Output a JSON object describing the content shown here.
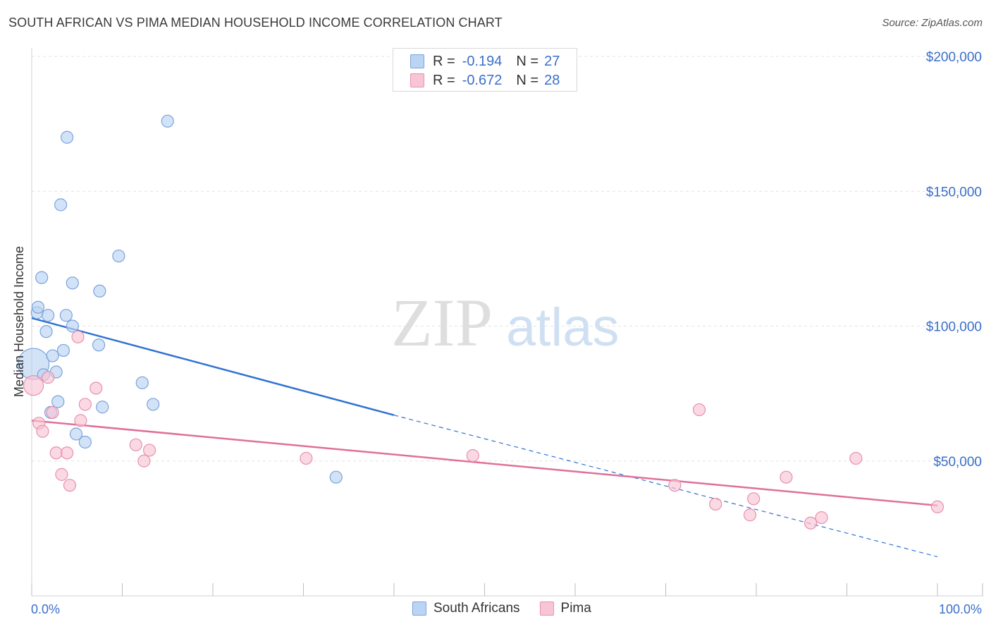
{
  "header": {
    "title": "SOUTH AFRICAN VS PIMA MEDIAN HOUSEHOLD INCOME CORRELATION CHART",
    "source": "Source: ZipAtlas.com"
  },
  "legend": {
    "rows": [
      {
        "r_label": "R =",
        "r_value": "-0.194",
        "n_label": "N =",
        "n_value": "27"
      },
      {
        "r_label": "R =",
        "r_value": "-0.672",
        "n_label": "N =",
        "n_value": "28"
      }
    ]
  },
  "colors": {
    "blue_fill": "#bcd4f3",
    "blue_stroke": "#7aa3dd",
    "blue_line": "#2f73d4",
    "pink_fill": "#f8c5d4",
    "pink_stroke": "#e890ae",
    "pink_line": "#e0709a",
    "axis_text": "#3a6fc9",
    "grid": "#e3e3e3"
  },
  "watermark": {
    "part1": "ZIP",
    "part2": "atlas"
  },
  "chart_data": {
    "type": "scatter",
    "title": "SOUTH AFRICAN VS PIMA MEDIAN HOUSEHOLD INCOME CORRELATION CHART",
    "xlabel": "",
    "ylabel": "Median Household Income",
    "xlim": [
      0,
      100
    ],
    "ylim": [
      0,
      210000
    ],
    "x_tick_labels": [
      "0.0%",
      "100.0%"
    ],
    "y_ticks": [
      50000,
      100000,
      150000,
      200000
    ],
    "y_tick_labels": [
      "$50,000",
      "$100,000",
      "$150,000",
      "$200,000"
    ],
    "grid": true,
    "legend_position": "top-center",
    "series": [
      {
        "name": "South Africans",
        "color": "blue",
        "points": [
          [
            0.2,
            86000
          ],
          [
            0.6,
            105000
          ],
          [
            0.7,
            107000
          ],
          [
            1.1,
            118000
          ],
          [
            1.3,
            82000
          ],
          [
            1.6,
            98000
          ],
          [
            1.8,
            104000
          ],
          [
            2.1,
            68000
          ],
          [
            2.3,
            89000
          ],
          [
            2.7,
            83000
          ],
          [
            2.9,
            72000
          ],
          [
            3.2,
            145000
          ],
          [
            3.5,
            91000
          ],
          [
            3.8,
            104000
          ],
          [
            3.9,
            170000
          ],
          [
            4.5,
            116000
          ],
          [
            4.5,
            100000
          ],
          [
            4.9,
            60000
          ],
          [
            5.9,
            57000
          ],
          [
            7.5,
            113000
          ],
          [
            7.4,
            93000
          ],
          [
            7.8,
            70000
          ],
          [
            9.6,
            126000
          ],
          [
            12.2,
            79000
          ],
          [
            13.4,
            71000
          ],
          [
            15.0,
            176000
          ],
          [
            33.6,
            44000
          ]
        ],
        "trend": {
          "x": [
            0,
            40
          ],
          "y": [
            103000,
            67000
          ],
          "dashed_to": [
            100,
            14500
          ]
        }
      },
      {
        "name": "Pima",
        "color": "pink",
        "points": [
          [
            0.2,
            78000
          ],
          [
            0.8,
            64000
          ],
          [
            1.2,
            61000
          ],
          [
            1.8,
            81000
          ],
          [
            2.3,
            68000
          ],
          [
            2.7,
            53000
          ],
          [
            3.3,
            45000
          ],
          [
            3.9,
            53000
          ],
          [
            4.2,
            41000
          ],
          [
            5.1,
            96000
          ],
          [
            5.4,
            65000
          ],
          [
            5.9,
            71000
          ],
          [
            7.1,
            77000
          ],
          [
            11.5,
            56000
          ],
          [
            12.4,
            50000
          ],
          [
            13.0,
            54000
          ],
          [
            30.3,
            51000
          ],
          [
            48.7,
            52000
          ],
          [
            71.0,
            41000
          ],
          [
            73.7,
            69000
          ],
          [
            75.5,
            34000
          ],
          [
            79.3,
            30000
          ],
          [
            79.7,
            36000
          ],
          [
            83.3,
            44000
          ],
          [
            86.0,
            27000
          ],
          [
            87.2,
            29000
          ],
          [
            91.0,
            51000
          ],
          [
            100.0,
            33000
          ]
        ],
        "trend": {
          "x": [
            0,
            100
          ],
          "y": [
            65000,
            33500
          ]
        }
      }
    ]
  }
}
